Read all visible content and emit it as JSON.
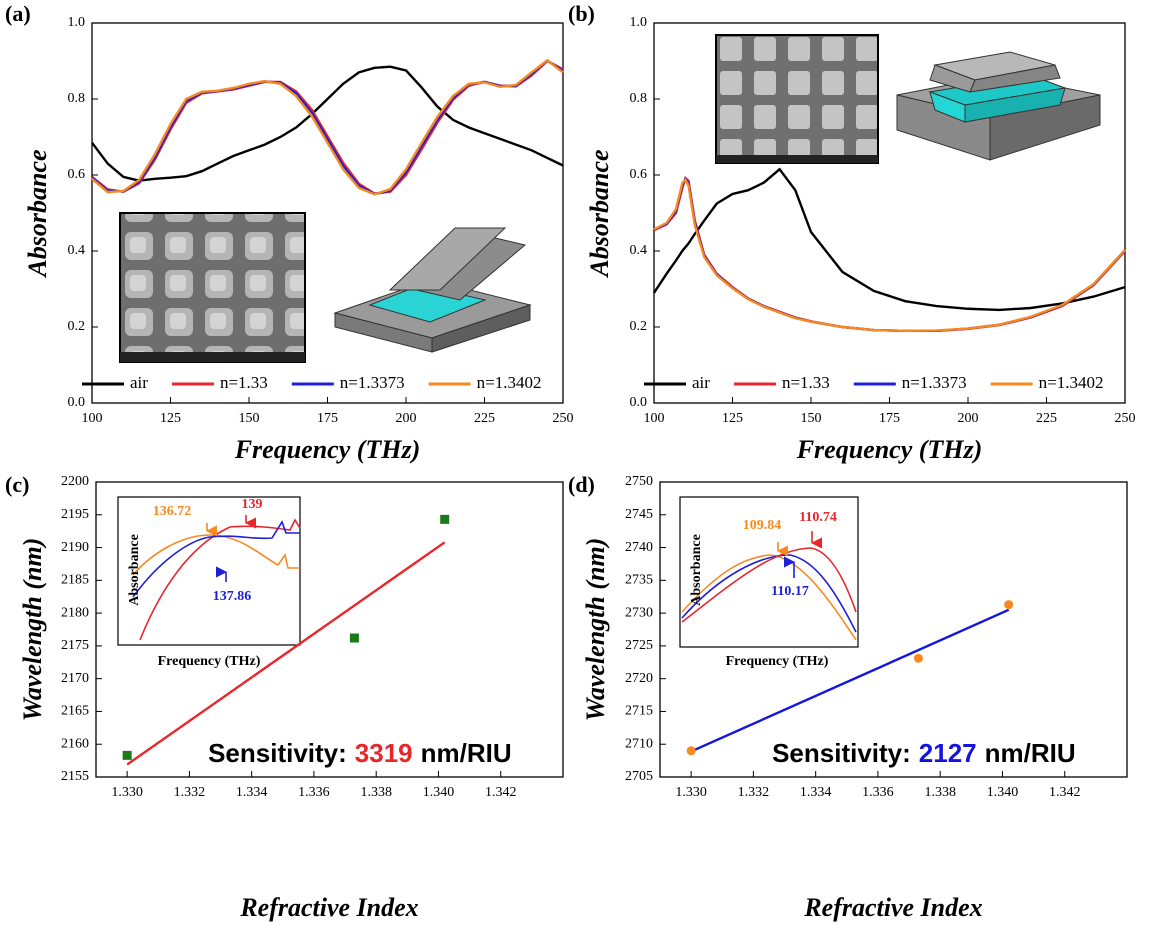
{
  "chart_data": [
    {
      "type": "line",
      "panel_label": "(a)",
      "xlabel": "Frequency (THz)",
      "ylabel": "Absorbance",
      "xlim": [
        100,
        250
      ],
      "ylim": [
        0,
        1
      ],
      "xticks": [
        100,
        125,
        150,
        175,
        200,
        225,
        250
      ],
      "yticks": [
        {
          "value": 0,
          "label": "0.0"
        },
        0.2,
        0.4,
        0.6,
        0.8,
        {
          "value": 1,
          "label": "1.0"
        }
      ],
      "legend": "bottom",
      "x": [
        100,
        105,
        110,
        115,
        120,
        125,
        130,
        135,
        140,
        145,
        150,
        155,
        160,
        165,
        170,
        175,
        180,
        185,
        190,
        195,
        200,
        205,
        210,
        215,
        220,
        225,
        230,
        235,
        240,
        245,
        250
      ],
      "series": [
        {
          "name": "air",
          "color": "#000000",
          "values": [
            0.685,
            0.63,
            0.595,
            0.585,
            0.59,
            0.593,
            0.597,
            0.61,
            0.63,
            0.65,
            0.665,
            0.68,
            0.7,
            0.725,
            0.76,
            0.8,
            0.84,
            0.87,
            0.882,
            0.885,
            0.875,
            0.83,
            0.78,
            0.745,
            0.725,
            0.71,
            0.695,
            0.68,
            0.665,
            0.645,
            0.625
          ]
        },
        {
          "name": "n=1.33",
          "color": "#e8262b",
          "values": [
            0.595,
            0.562,
            0.556,
            0.578,
            0.64,
            0.72,
            0.79,
            0.815,
            0.82,
            0.825,
            0.835,
            0.845,
            0.845,
            0.82,
            0.772,
            0.702,
            0.632,
            0.577,
            0.551,
            0.556,
            0.6,
            0.668,
            0.738,
            0.798,
            0.835,
            0.845,
            0.835,
            0.833,
            0.862,
            0.9,
            0.878
          ]
        },
        {
          "name": "n=1.3373",
          "color": "#1f1fd6",
          "values": [
            0.593,
            0.559,
            0.557,
            0.582,
            0.646,
            0.726,
            0.795,
            0.817,
            0.821,
            0.827,
            0.837,
            0.846,
            0.843,
            0.815,
            0.764,
            0.694,
            0.624,
            0.572,
            0.55,
            0.559,
            0.607,
            0.676,
            0.745,
            0.803,
            0.838,
            0.845,
            0.834,
            0.835,
            0.866,
            0.901,
            0.874
          ]
        },
        {
          "name": "n=1.3402",
          "color": "#f7891f",
          "values": [
            0.59,
            0.555,
            0.558,
            0.587,
            0.654,
            0.734,
            0.8,
            0.819,
            0.822,
            0.829,
            0.84,
            0.847,
            0.84,
            0.808,
            0.755,
            0.685,
            0.615,
            0.566,
            0.549,
            0.563,
            0.615,
            0.685,
            0.753,
            0.808,
            0.84,
            0.844,
            0.832,
            0.837,
            0.87,
            0.902,
            0.87
          ]
        }
      ]
    },
    {
      "type": "line",
      "panel_label": "(b)",
      "xlabel": "Frequency (THz)",
      "ylabel": "Absorbance",
      "xlim": [
        100,
        250
      ],
      "ylim": [
        0,
        1
      ],
      "xticks": [
        100,
        125,
        150,
        175,
        200,
        225,
        250
      ],
      "yticks": [
        {
          "value": 0,
          "label": "0.0"
        },
        0.2,
        0.4,
        0.6,
        0.8,
        {
          "value": 1,
          "label": "1.0"
        }
      ],
      "legend": "bottom",
      "x": [
        100,
        104,
        107,
        109,
        110,
        111,
        113,
        116,
        120,
        125,
        130,
        135,
        140,
        145,
        150,
        160,
        170,
        180,
        190,
        200,
        210,
        220,
        230,
        240,
        250
      ],
      "series": [
        {
          "name": "air",
          "color": "#000000",
          "values": [
            0.29,
            0.34,
            0.375,
            0.4,
            0.41,
            0.42,
            0.445,
            0.48,
            0.525,
            0.55,
            0.56,
            0.58,
            0.615,
            0.56,
            0.45,
            0.345,
            0.295,
            0.268,
            0.255,
            0.248,
            0.245,
            0.25,
            0.262,
            0.28,
            0.305
          ]
        },
        {
          "name": "n=1.33",
          "color": "#e8262b",
          "values": [
            0.455,
            0.47,
            0.5,
            0.565,
            0.592,
            0.585,
            0.48,
            0.39,
            0.34,
            0.305,
            0.275,
            0.255,
            0.24,
            0.225,
            0.215,
            0.2,
            0.192,
            0.19,
            0.19,
            0.195,
            0.205,
            0.225,
            0.255,
            0.31,
            0.4
          ]
        },
        {
          "name": "n=1.3373",
          "color": "#1f1fd6",
          "values": [
            0.456,
            0.472,
            0.505,
            0.572,
            0.59,
            0.578,
            0.474,
            0.387,
            0.338,
            0.303,
            0.274,
            0.254,
            0.239,
            0.224,
            0.214,
            0.2,
            0.192,
            0.19,
            0.19,
            0.196,
            0.206,
            0.226,
            0.257,
            0.312,
            0.402
          ]
        },
        {
          "name": "n=1.3402",
          "color": "#f7891f",
          "values": [
            0.457,
            0.474,
            0.51,
            0.578,
            0.588,
            0.572,
            0.468,
            0.384,
            0.336,
            0.302,
            0.273,
            0.253,
            0.238,
            0.223,
            0.214,
            0.2,
            0.192,
            0.19,
            0.191,
            0.196,
            0.206,
            0.227,
            0.258,
            0.313,
            0.403
          ]
        }
      ]
    },
    {
      "type": "scatter",
      "panel_label": "(c)",
      "xlabel": "Refractive Index",
      "ylabel": "Wavelength (nm)",
      "xlim": [
        1.329,
        1.344
      ],
      "ylim": [
        2155,
        2200
      ],
      "xticks": [
        {
          "value": 1.33,
          "label": "1.330"
        },
        {
          "value": 1.332,
          "label": "1.332"
        },
        {
          "value": 1.334,
          "label": "1.334"
        },
        {
          "value": 1.336,
          "label": "1.336"
        },
        {
          "value": 1.338,
          "label": "1.338"
        },
        {
          "value": 1.34,
          "label": "1.340"
        },
        {
          "value": 1.342,
          "label": "1.342"
        }
      ],
      "yticks": [
        2155,
        2160,
        2165,
        2170,
        2175,
        2180,
        2185,
        2190,
        2195,
        2200
      ],
      "series": [
        {
          "type": "line",
          "color": "#e8262b",
          "x": [
            1.33,
            1.3402
          ],
          "values": [
            2156.9,
            2190.8
          ]
        },
        {
          "type": "scatter",
          "marker": "square",
          "color": "#1a7a1a",
          "x": [
            1.33,
            1.3373,
            1.3402
          ],
          "values": [
            2158.3,
            2176.2,
            2194.3
          ]
        }
      ],
      "annotation": [
        {
          "text": "Sensitivity:",
          "color": "#000000"
        },
        {
          "text": "3319",
          "color": "#e8262b"
        },
        {
          "text": "nm/RIU",
          "color": "#000000"
        }
      ],
      "inset": {
        "xlabel": "Frequency (THz)",
        "ylabel": "Absorbance",
        "annotations": [
          {
            "text": "136.72",
            "color": "#f7891f"
          },
          {
            "text": "139",
            "color": "#e8262b"
          },
          {
            "text": "137.86",
            "color": "#1f1fd6"
          }
        ]
      }
    },
    {
      "type": "scatter",
      "panel_label": "(d)",
      "xlabel": "Refractive Index",
      "ylabel": "Wavelength (nm)",
      "xlim": [
        1.329,
        1.344
      ],
      "ylim": [
        2705,
        2750
      ],
      "xticks": [
        {
          "value": 1.33,
          "label": "1.330"
        },
        {
          "value": 1.332,
          "label": "1.332"
        },
        {
          "value": 1.334,
          "label": "1.334"
        },
        {
          "value": 1.336,
          "label": "1.336"
        },
        {
          "value": 1.338,
          "label": "1.338"
        },
        {
          "value": 1.34,
          "label": "1.340"
        },
        {
          "value": 1.342,
          "label": "1.342"
        }
      ],
      "yticks": [
        2705,
        2710,
        2715,
        2720,
        2725,
        2730,
        2735,
        2740,
        2745,
        2750
      ],
      "series": [
        {
          "type": "line",
          "color": "#1414e0",
          "x": [
            1.33,
            1.3402
          ],
          "values": [
            2708.9,
            2730.5
          ]
        },
        {
          "type": "scatter",
          "marker": "circle",
          "color": "#f7891f",
          "x": [
            1.33,
            1.3373,
            1.3402
          ],
          "values": [
            2709.0,
            2723.1,
            2731.3
          ]
        }
      ],
      "annotation": [
        {
          "text": "Sensitivity:",
          "color": "#000000"
        },
        {
          "text": "2127",
          "color": "#1414e0"
        },
        {
          "text": "nm/RIU",
          "color": "#000000"
        }
      ],
      "inset": {
        "xlabel": "Frequency (THz)",
        "ylabel": "Absorbance",
        "annotations": [
          {
            "text": "109.84",
            "color": "#f7891f"
          },
          {
            "text": "110.74",
            "color": "#e8262b"
          },
          {
            "text": "110.17",
            "color": "#1f1fd6"
          }
        ]
      }
    }
  ]
}
